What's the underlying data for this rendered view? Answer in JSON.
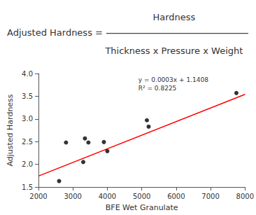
{
  "chart_data": {
    "type": "scatter",
    "xlabel": "BFE Wet Granulate",
    "ylabel": "Adjusted Hardness",
    "series": [
      {
        "type": "scatter",
        "color": "#000000",
        "x": [
          2600,
          2800,
          3300,
          3350,
          3450,
          3900,
          4000,
          5150,
          5200,
          7750
        ],
        "values": [
          1.63,
          2.48,
          2.05,
          2.57,
          2.48,
          2.49,
          2.29,
          2.97,
          2.83,
          3.57
        ]
      },
      {
        "type": "line",
        "color": "#ff0000",
        "x": [
          2000,
          8000
        ],
        "values": [
          1.7408,
          3.5408
        ]
      }
    ],
    "annotations": [
      {
        "text": "Adjusted Hardness = "
      },
      {
        "text": "Hardness"
      },
      {
        "text": "Thickness x Pressure x Weight"
      },
      {
        "text": "y = 0.0003x + 1.1408\nR² = 0.8225",
        "x": 4900,
        "y": 3.95
      }
    ],
    "xlim": [
      2000,
      8000
    ],
    "ylim": [
      1.5,
      4.0
    ],
    "xticks": [
      2000,
      3000,
      4000,
      5000,
      6000,
      7000,
      8000
    ],
    "yticks": [
      1.5,
      {
        "value": 2,
        "label": "2.0"
      },
      2.5,
      {
        "value": 3,
        "label": "3.0"
      },
      3.5,
      {
        "value": 4,
        "label": "4.0"
      }
    ],
    "grid": false
  }
}
